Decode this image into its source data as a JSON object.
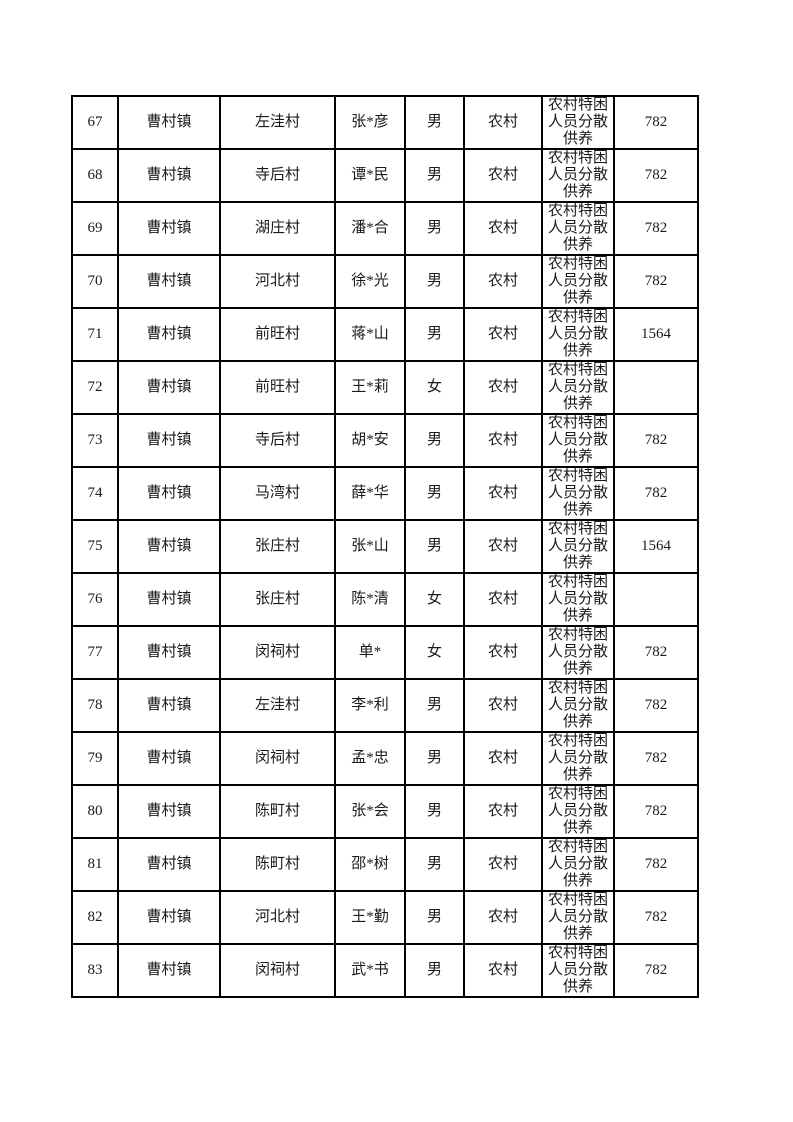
{
  "page": {
    "background_color": "#ffffff",
    "border_color": "#000000",
    "text_color": "#1a1a1a"
  },
  "table": {
    "rows": [
      [
        "67",
        "曹村镇",
        "左洼村",
        "张*彦",
        "男",
        "农村",
        "农村特困人员分散供养",
        "782"
      ],
      [
        "68",
        "曹村镇",
        "寺后村",
        "谭*民",
        "男",
        "农村",
        "农村特困人员分散供养",
        "782"
      ],
      [
        "69",
        "曹村镇",
        "湖庄村",
        "潘*合",
        "男",
        "农村",
        "农村特困人员分散供养",
        "782"
      ],
      [
        "70",
        "曹村镇",
        "河北村",
        "徐*光",
        "男",
        "农村",
        "农村特困人员分散供养",
        "782"
      ],
      [
        "71",
        "曹村镇",
        "前旺村",
        "蒋*山",
        "男",
        "农村",
        "农村特困人员分散供养",
        "1564"
      ],
      [
        "72",
        "曹村镇",
        "前旺村",
        "王*莉",
        "女",
        "农村",
        "农村特困人员分散供养",
        ""
      ],
      [
        "73",
        "曹村镇",
        "寺后村",
        "胡*安",
        "男",
        "农村",
        "农村特困人员分散供养",
        "782"
      ],
      [
        "74",
        "曹村镇",
        "马湾村",
        "薛*华",
        "男",
        "农村",
        "农村特困人员分散供养",
        "782"
      ],
      [
        "75",
        "曹村镇",
        "张庄村",
        "张*山",
        "男",
        "农村",
        "农村特困人员分散供养",
        "1564"
      ],
      [
        "76",
        "曹村镇",
        "张庄村",
        "陈*清",
        "女",
        "农村",
        "农村特困人员分散供养",
        ""
      ],
      [
        "77",
        "曹村镇",
        "闵祠村",
        "单*",
        "女",
        "农村",
        "农村特困人员分散供养",
        "782"
      ],
      [
        "78",
        "曹村镇",
        "左洼村",
        "李*利",
        "男",
        "农村",
        "农村特困人员分散供养",
        "782"
      ],
      [
        "79",
        "曹村镇",
        "闵祠村",
        "孟*忠",
        "男",
        "农村",
        "农村特困人员分散供养",
        "782"
      ],
      [
        "80",
        "曹村镇",
        "陈町村",
        "张*会",
        "男",
        "农村",
        "农村特困人员分散供养",
        "782"
      ],
      [
        "81",
        "曹村镇",
        "陈町村",
        "邵*树",
        "男",
        "农村",
        "农村特困人员分散供养",
        "782"
      ],
      [
        "82",
        "曹村镇",
        "河北村",
        "王*勤",
        "男",
        "农村",
        "农村特困人员分散供养",
        "782"
      ],
      [
        "83",
        "曹村镇",
        "闵祠村",
        "武*书",
        "男",
        "农村",
        "农村特困人员分散供养",
        "782"
      ]
    ]
  }
}
